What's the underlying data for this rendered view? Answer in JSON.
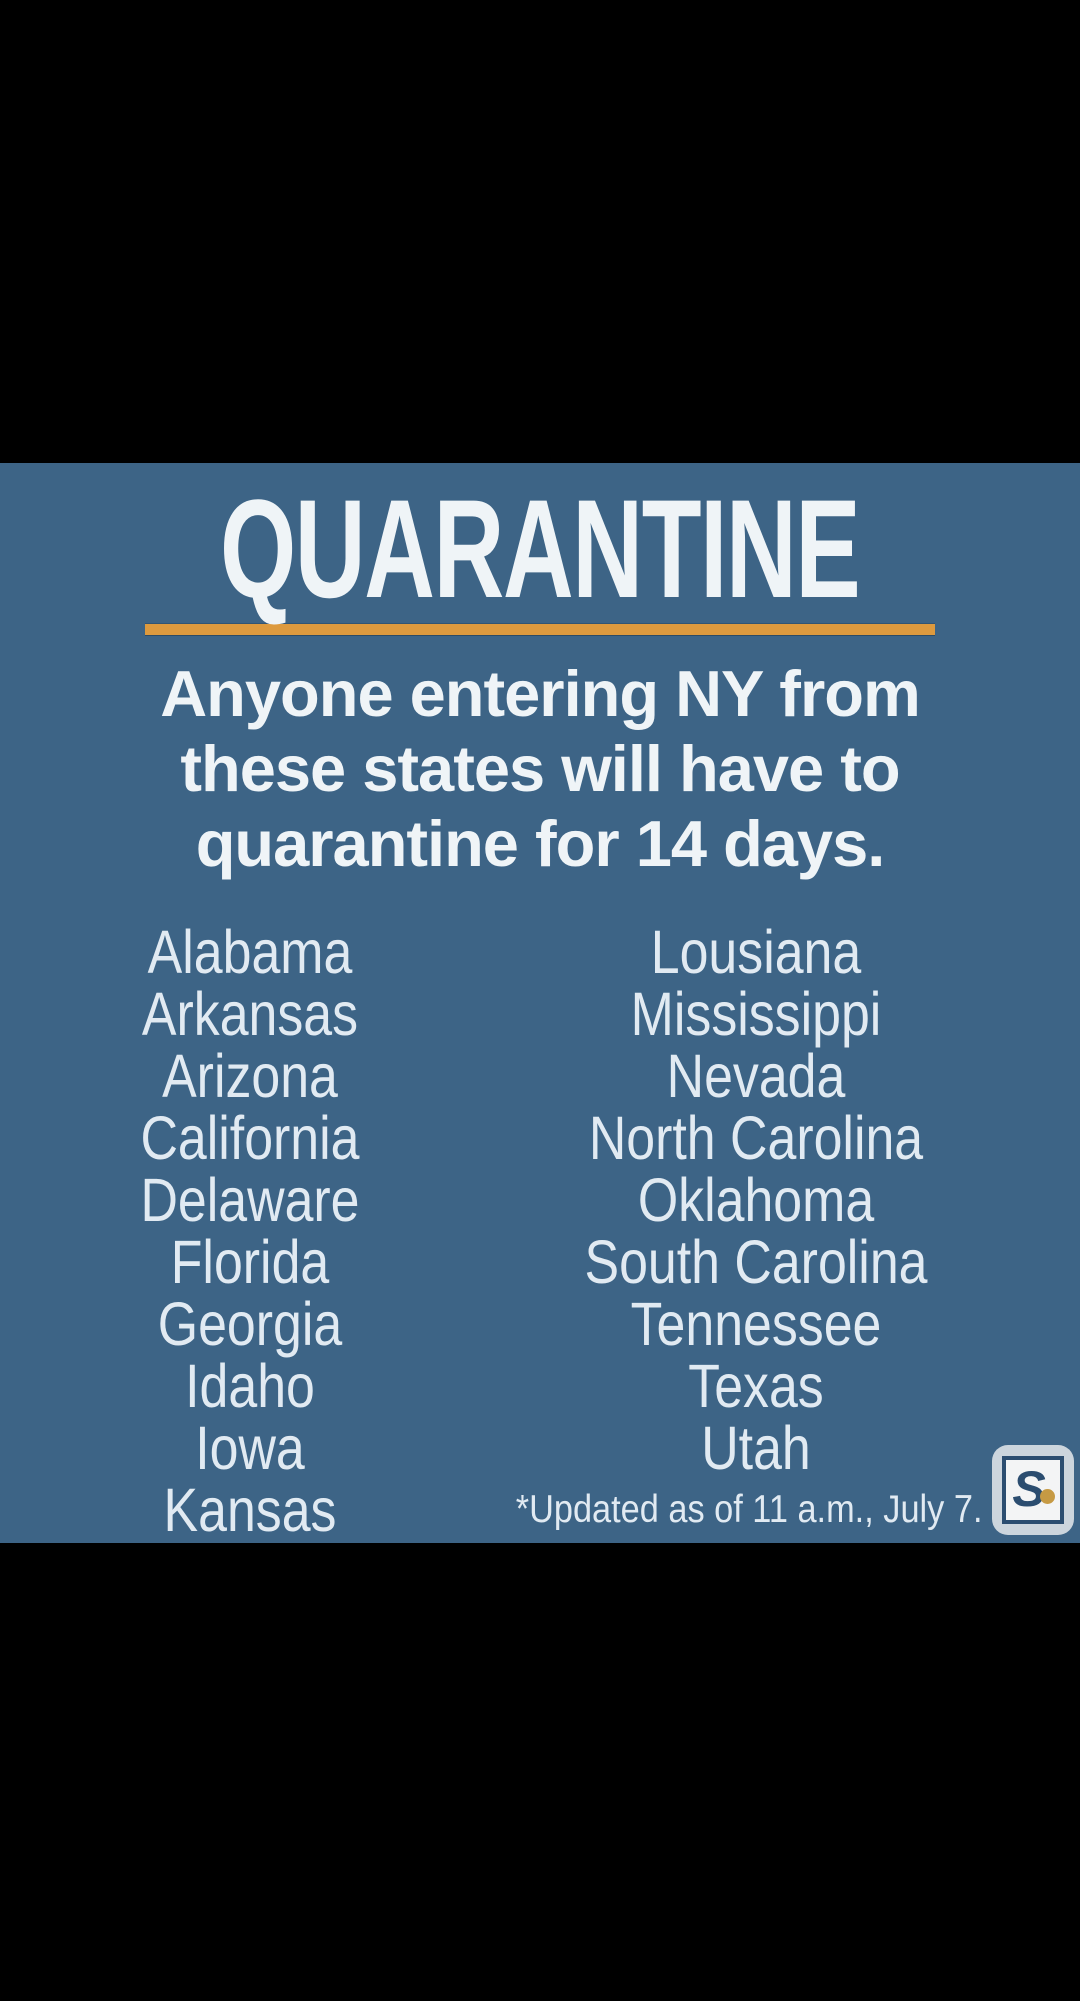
{
  "graphic": {
    "title": "QUARANTINE",
    "subtitle_lines": [
      "Anyone entering NY from",
      "these states will have to",
      "quarantine for 14 days."
    ],
    "states_left": [
      "Alabama",
      "Arkansas",
      "Arizona",
      "California",
      "Delaware",
      "Florida",
      "Georgia",
      "Idaho",
      "Iowa",
      "Kansas"
    ],
    "states_right": [
      "Lousiana",
      "Mississippi",
      "Nevada",
      "North Carolina",
      "Oklahoma",
      "South Carolina",
      "Tennessee",
      "Texas",
      "Utah"
    ],
    "footnote": "*Updated as of 11 a.m., July 7.",
    "logo_letter": "S",
    "colors": {
      "panel": "#3d6486",
      "divider": "#dd9a3e",
      "title_text": "#eff4f7",
      "body_text": "#e1eaf2",
      "logo_bg": "#ccd5dd",
      "logo_inner_bg": "#f3f4f5",
      "logo_navy": "#2b4d70",
      "logo_gold": "#c69a44",
      "letterbox": "#000000"
    }
  }
}
